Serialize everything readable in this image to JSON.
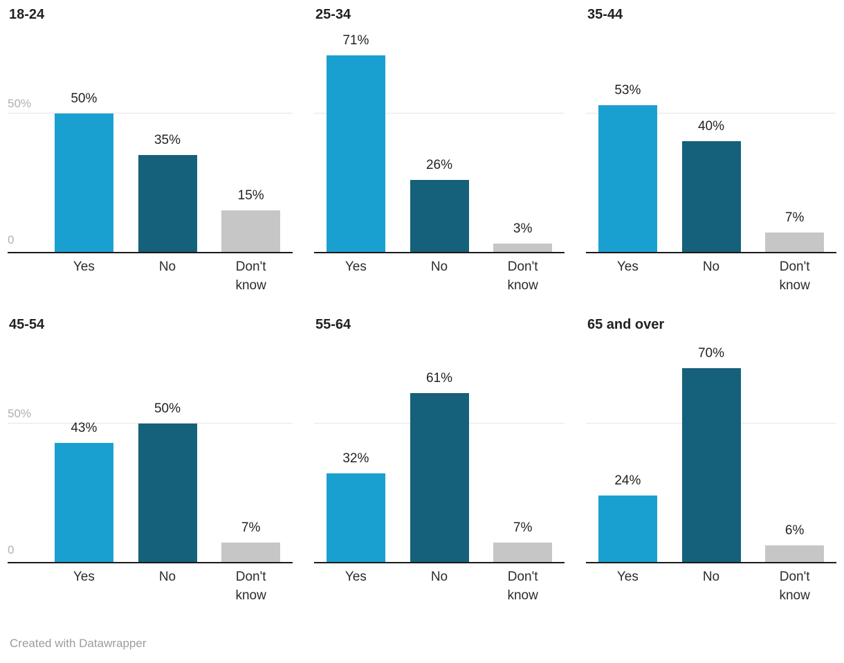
{
  "chart_data": {
    "type": "bar",
    "layout": "small-multiples",
    "categories": [
      "Yes",
      "No",
      "Don't know"
    ],
    "panels": [
      {
        "title": "18-24",
        "values": [
          50,
          35,
          15
        ]
      },
      {
        "title": "25-34",
        "values": [
          71,
          26,
          3
        ]
      },
      {
        "title": "35-44",
        "values": [
          53,
          40,
          7
        ]
      },
      {
        "title": "45-54",
        "values": [
          43,
          50,
          7
        ]
      },
      {
        "title": "55-64",
        "values": [
          32,
          61,
          7
        ]
      },
      {
        "title": "65 and over",
        "values": [
          24,
          70,
          6
        ]
      }
    ],
    "value_suffix": "%",
    "series_colors": [
      "#1aa0d0",
      "#15607a",
      "#c6c6c6"
    ],
    "series_color_names": [
      "yes-light-blue",
      "no-dark-teal",
      "dont-know-gray"
    ],
    "y_axis": {
      "ticks": [
        {
          "value": 50,
          "label": "50%"
        },
        {
          "value": 0,
          "label": "0"
        }
      ],
      "ylim": [
        0,
        89
      ],
      "gridline_at": 50,
      "tick_labels_on_first_column_only": true
    },
    "legend": false,
    "title": "",
    "xlabel": "",
    "ylabel": ""
  },
  "colors": {
    "background": "#ffffff",
    "gridline": "#e4e4e4",
    "baseline": "#191919",
    "tick_label": "#b0b0b0",
    "value_label": "#222222",
    "category_label": "#2b2b2b",
    "panel_title": "#222222",
    "credit": "#9c9c9c"
  },
  "footer": {
    "credit": "Created with Datawrapper"
  }
}
